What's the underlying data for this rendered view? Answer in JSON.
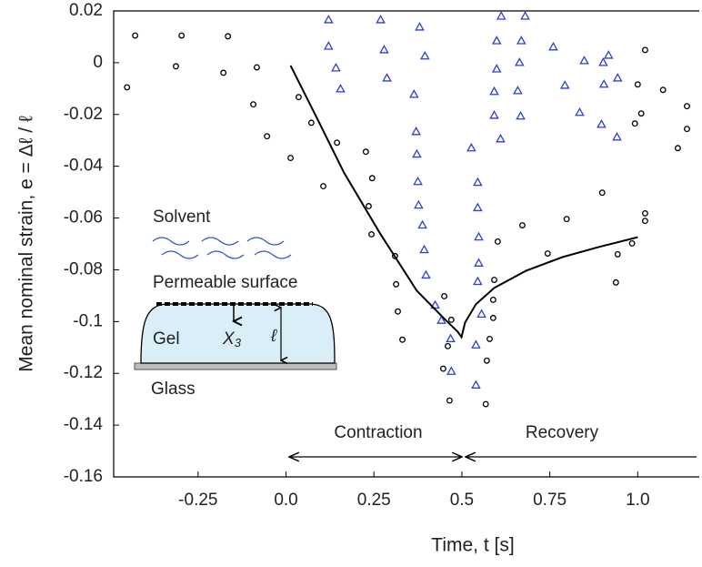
{
  "chart_data": {
    "type": "scatter",
    "x_label": "Time, t [s]",
    "y_label": "Mean nominal strain, e = Δℓ / ℓ",
    "xlim": [
      -0.49,
      1.175
    ],
    "ylim": [
      -0.16,
      0.02
    ],
    "xticks": [
      -0.25,
      {
        "value": 0,
        "label": "0.0"
      },
      0.25,
      0.5,
      0.75,
      {
        "value": 1,
        "label": "1.0"
      }
    ],
    "yticks": [
      0.02,
      0,
      -0.02,
      -0.04,
      -0.06,
      -0.08,
      -0.1,
      -0.12,
      -0.14,
      -0.16
    ],
    "grid": false,
    "annotations": {
      "contraction": "Contraction",
      "recovery": "Recovery"
    },
    "inset": {
      "solvent": "Solvent",
      "surface": "Permeable surface",
      "gel": "Gel",
      "x3": "X",
      "x3_sub": "3",
      "ell": "ℓ",
      "glass": "Glass"
    },
    "series": [
      {
        "type": "scatter",
        "marker": "circle",
        "color": "#000000",
        "x": [
          -0.452,
          -0.429,
          -0.313,
          -0.297,
          -0.178,
          -0.165,
          -0.093,
          -0.083,
          -0.054,
          0.013,
          0.036,
          0.072,
          0.106,
          0.145,
          0.227,
          0.245,
          0.235,
          0.243,
          0.31,
          0.313,
          0.318,
          0.331,
          0.45,
          0.47,
          0.46,
          0.447,
          0.465,
          0.568,
          0.571,
          0.579,
          0.589,
          0.589,
          0.592,
          0.602,
          0.672,
          0.744,
          0.798,
          0.899,
          0.943,
          0.938,
          0.984,
          1.021,
          1.021,
          1.0,
          1.01,
          1.021,
          0.992,
          1.072,
          1.114,
          1.14,
          1.14
        ],
        "values": [
          -0.0095,
          0.0105,
          -0.0014,
          0.0105,
          -0.0039,
          0.0102,
          -0.0161,
          -0.0018,
          -0.0284,
          -0.0368,
          -0.0133,
          -0.0232,
          -0.0477,
          -0.0309,
          -0.0344,
          -0.0446,
          -0.0554,
          -0.0663,
          -0.0747,
          -0.0856,
          -0.0961,
          -0.107,
          -0.0902,
          -0.0993,
          -0.1095,
          -0.1182,
          -0.1305,
          -0.1319,
          -0.1151,
          -0.1067,
          -0.0986,
          -0.0916,
          -0.0839,
          -0.0691,
          -0.0628,
          -0.0737,
          -0.0604,
          -0.0502,
          -0.074,
          -0.0849,
          -0.0698,
          -0.0582,
          -0.0611,
          -0.0084,
          -0.0196,
          0.0049,
          -0.0235,
          -0.0105,
          -0.033,
          -0.0168,
          -0.0256
        ]
      },
      {
        "type": "scatter",
        "marker": "triangle",
        "color": "#2f3fd6",
        "x": [
          0.121,
          0.121,
          0.142,
          0.155,
          0.269,
          0.279,
          0.287,
          0.38,
          0.395,
          0.364,
          0.37,
          0.372,
          0.375,
          0.377,
          0.388,
          0.393,
          0.398,
          0.424,
          0.442,
          0.468,
          0.47,
          0.527,
          0.545,
          0.545,
          0.548,
          0.548,
          0.545,
          0.556,
          0.54,
          0.54,
          0.612,
          0.599,
          0.599,
          0.592,
          0.592,
          0.61,
          0.68,
          0.669,
          0.664,
          0.659,
          0.667,
          0.76,
          0.793,
          0.835,
          0.848,
          0.902,
          0.904,
          0.897,
          0.941,
          0.943,
          0.917
        ],
        "values": [
          0.0165,
          0.0063,
          -0.0021,
          -0.0102,
          0.0165,
          0.0049,
          -0.006,
          0.0137,
          0.0025,
          -0.0123,
          -0.0267,
          -0.0354,
          -0.046,
          -0.0551,
          -0.0628,
          -0.0723,
          -0.0821,
          -0.0937,
          -0.0996,
          -0.1067,
          -0.1193,
          -0.033,
          -0.0463,
          -0.0561,
          -0.0674,
          -0.0775,
          -0.0846,
          -0.0972,
          -0.1091,
          -0.1246,
          0.0179,
          0.0084,
          -0.0025,
          -0.0112,
          -0.0204,
          -0.0295,
          0.0179,
          0.0084,
          0,
          -0.0109,
          -0.0207,
          0.006,
          -0.0088,
          -0.0193,
          0.0007,
          0,
          -0.0084,
          -0.0239,
          -0.0288,
          -0.006,
          0.0028
        ]
      },
      {
        "type": "line",
        "color": "#000000",
        "x": [
          0.013,
          0.088,
          0.165,
          0.269,
          0.372,
          0.45,
          0.488,
          0.499,
          0.509,
          0.54,
          0.592,
          0.682,
          0.786,
          0.889,
          1.0
        ],
        "values": [
          -0.0011,
          -0.0214,
          -0.0425,
          -0.0663,
          -0.0881,
          -0.0989,
          -0.1039,
          -0.106,
          -0.1004,
          -0.0933,
          -0.087,
          -0.0804,
          -0.0751,
          -0.0712,
          -0.0674
        ]
      }
    ]
  }
}
